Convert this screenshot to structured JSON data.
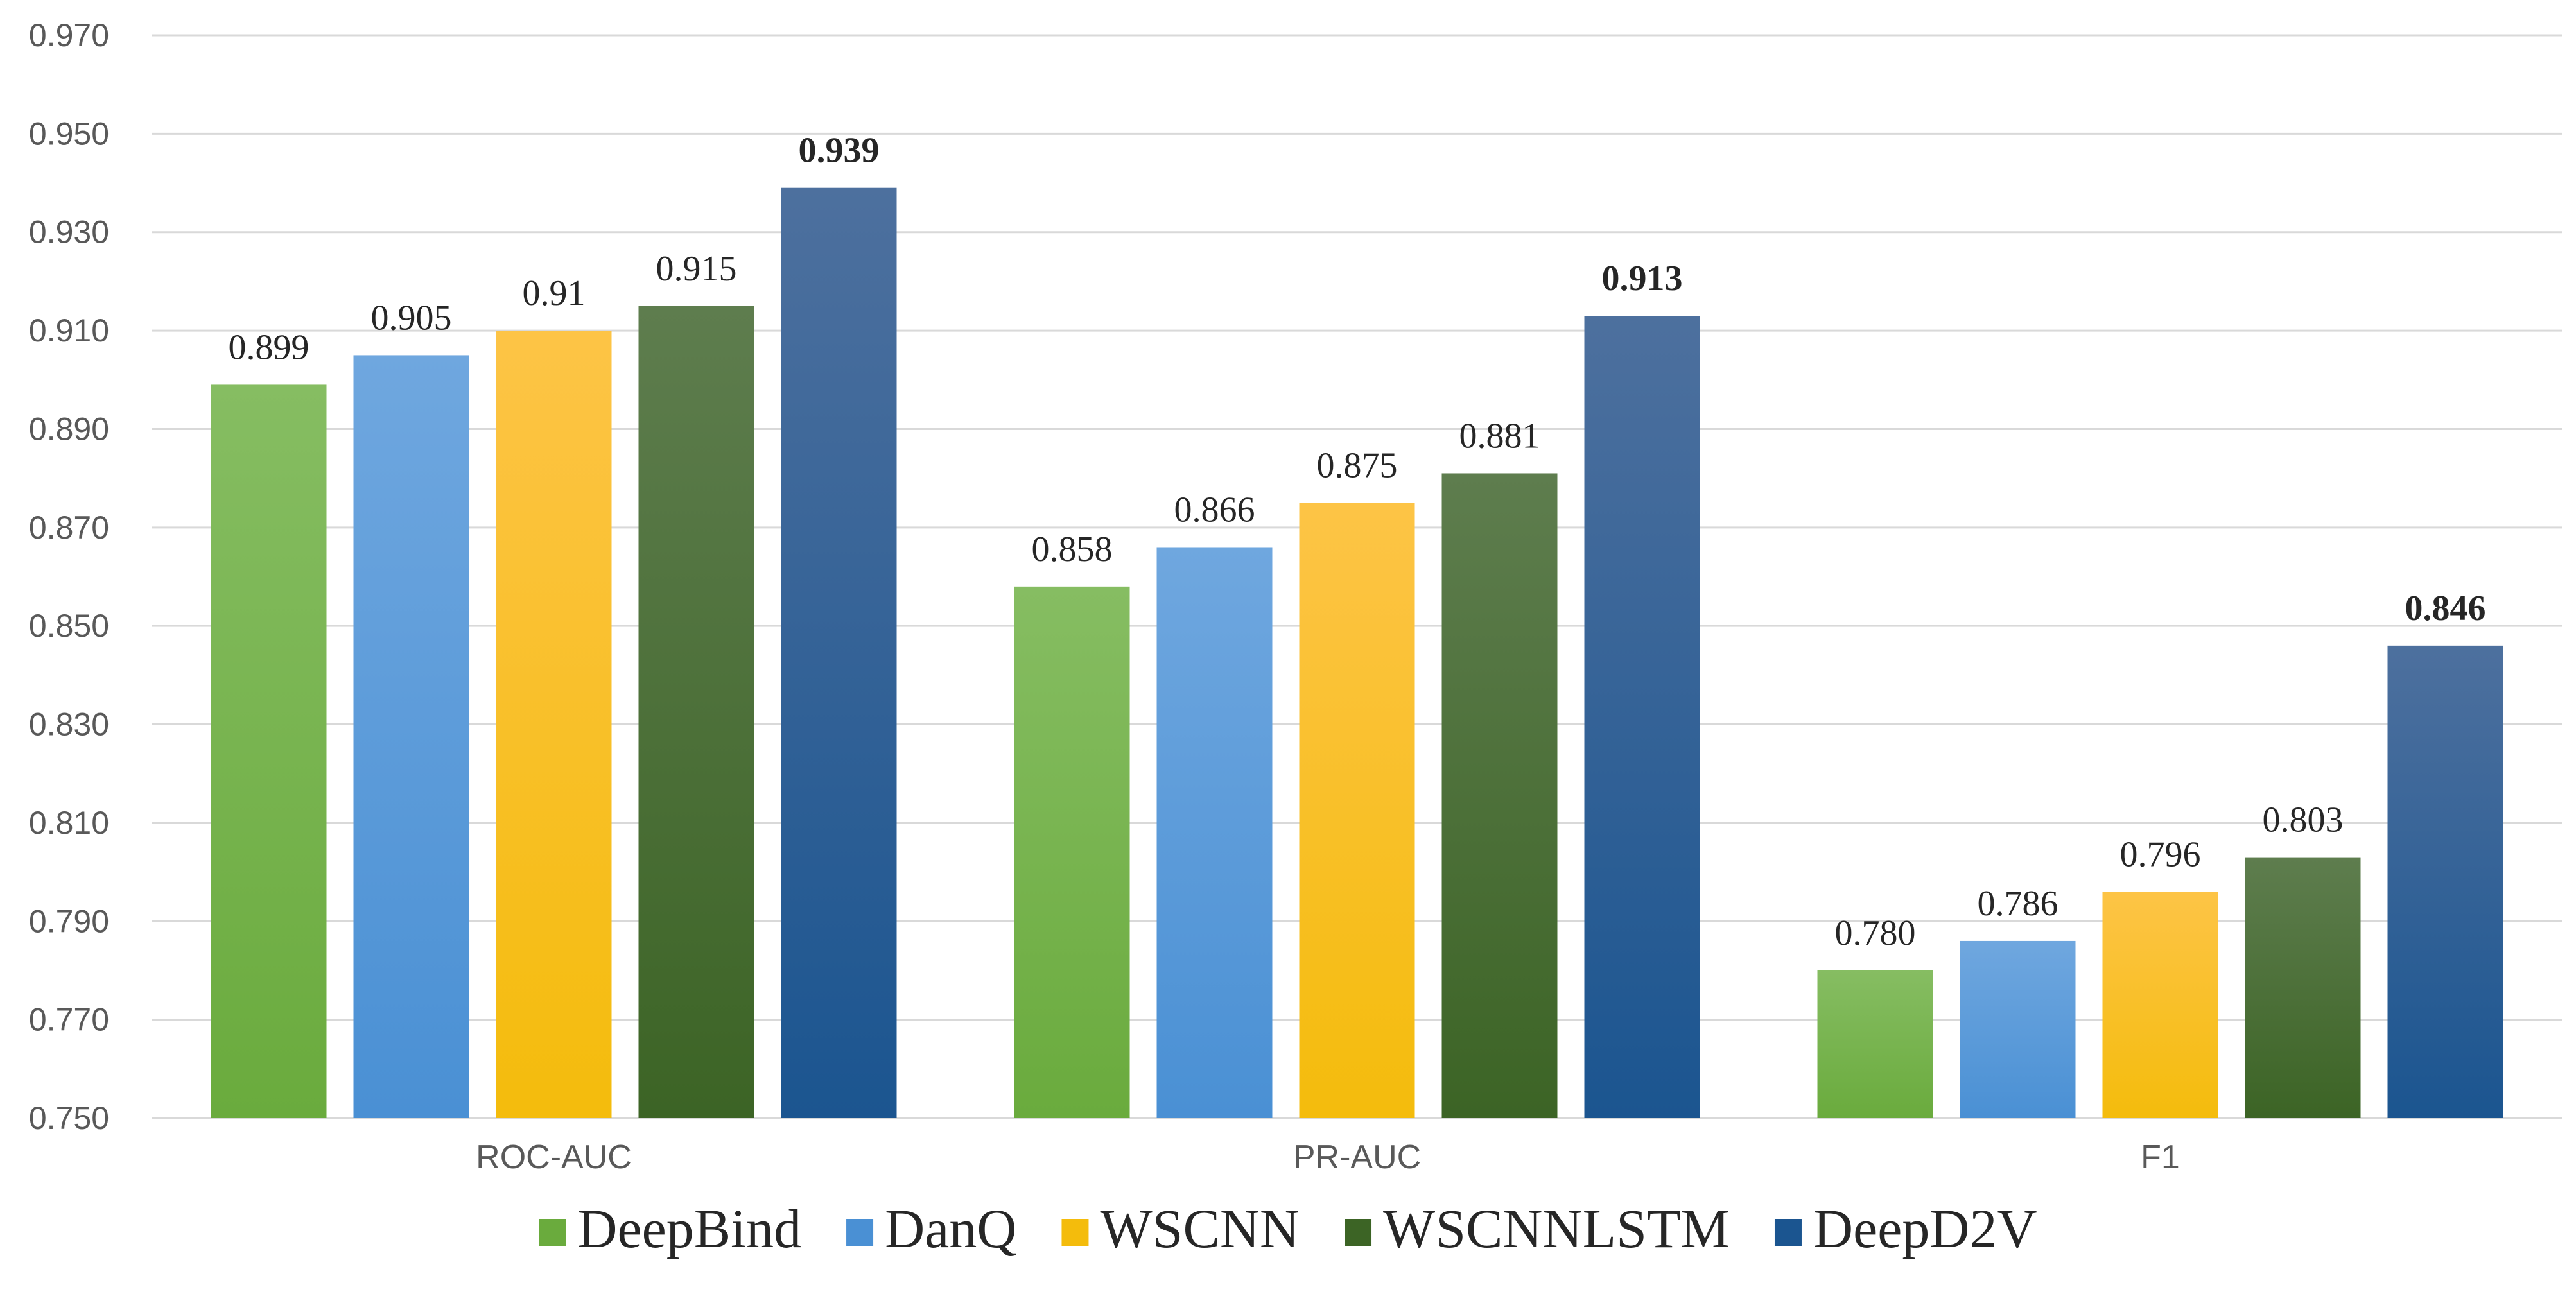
{
  "chart_data": {
    "type": "bar",
    "title": "",
    "xlabel": "",
    "ylabel": "",
    "ylim": [
      0.75,
      0.97
    ],
    "ytick_step": 0.02,
    "ytick_labels": [
      "0.750",
      "0.770",
      "0.790",
      "0.810",
      "0.830",
      "0.850",
      "0.870",
      "0.890",
      "0.910",
      "0.930",
      "0.950",
      "0.970"
    ],
    "grid": true,
    "legend_position": "bottom",
    "categories": [
      "ROC-AUC",
      "PR-AUC",
      "F1"
    ],
    "series": [
      {
        "name": "DeepBind",
        "color": "#6aab3d",
        "color_light": "#86bd62",
        "values": [
          0.899,
          0.858,
          0.78
        ],
        "labels": [
          "0.899",
          "0.858",
          "0.780"
        ],
        "bold": false
      },
      {
        "name": "DanQ",
        "color": "#4a90d4",
        "color_light": "#6fa7df",
        "values": [
          0.905,
          0.866,
          0.786
        ],
        "labels": [
          "0.905",
          "0.866",
          "0.786"
        ],
        "bold": false
      },
      {
        "name": "WSCNN",
        "color": "#f4bc0c",
        "color_light": "#fdc446",
        "values": [
          0.91,
          0.875,
          0.796
        ],
        "labels": [
          "0.91",
          "0.875",
          "0.796"
        ],
        "bold": false
      },
      {
        "name": "WSCNNLSTM",
        "color": "#3c6425",
        "color_light": "#5e7d4e",
        "values": [
          0.915,
          0.881,
          0.803
        ],
        "labels": [
          "0.915",
          "0.881",
          "0.803"
        ],
        "bold": false
      },
      {
        "name": "DeepD2V",
        "color": "#1b5590",
        "color_light": "#4d709e",
        "values": [
          0.939,
          0.913,
          0.846
        ],
        "labels": [
          "0.939",
          "0.913",
          "0.846"
        ],
        "bold": true
      }
    ]
  }
}
